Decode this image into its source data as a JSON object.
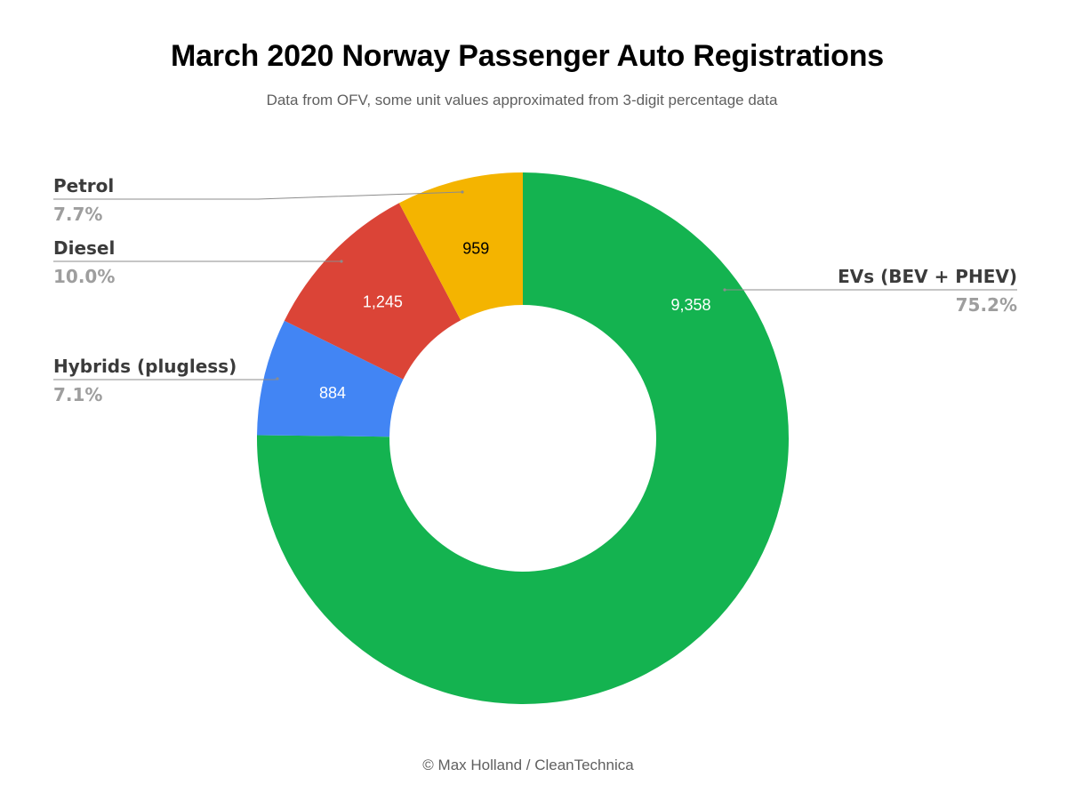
{
  "chart_data": {
    "type": "pie",
    "title": "March 2020 Norway Passenger Auto Registrations",
    "subtitle": "Data from OFV, some unit values approximated from 3-digit percentage data",
    "credit": "© Max Holland / CleanTechnica",
    "donut": true,
    "slices": [
      {
        "name": "EVs (BEV + PHEV)",
        "value": 9358,
        "value_label": "9,358",
        "percent_label": "75.2%",
        "color": "#14b350",
        "value_color": "#ffffff",
        "label_side": "right"
      },
      {
        "name": "Hybrids (plugless)",
        "value": 884,
        "value_label": "884",
        "percent_label": "7.1%",
        "color": "#4285f4",
        "value_color": "#ffffff",
        "label_side": "left"
      },
      {
        "name": "Diesel",
        "value": 1245,
        "value_label": "1,245",
        "percent_label": "10.0%",
        "color": "#db4437",
        "value_color": "#ffffff",
        "label_side": "left"
      },
      {
        "name": "Petrol",
        "value": 959,
        "value_label": "959",
        "percent_label": "7.7%",
        "color": "#f4b400",
        "value_color": "#000000",
        "label_side": "left"
      }
    ]
  }
}
